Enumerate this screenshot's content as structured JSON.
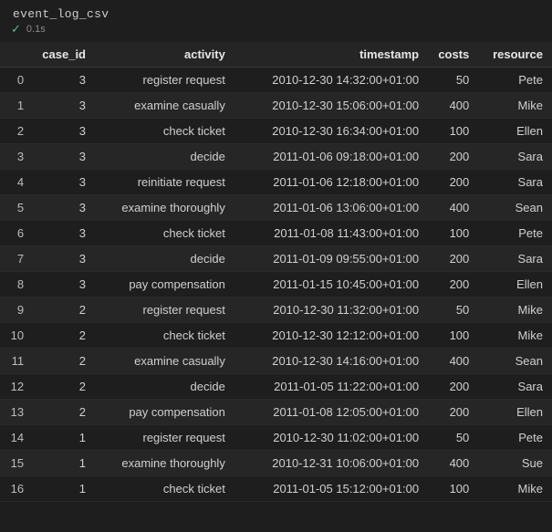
{
  "header": {
    "title": "event_log_csv",
    "status_time": "0.1s"
  },
  "table": {
    "columns": [
      "case_id",
      "activity",
      "timestamp",
      "costs",
      "resource"
    ],
    "rows": [
      {
        "idx": 0,
        "case_id": 3,
        "activity": "register request",
        "timestamp": "2010-12-30 14:32:00+01:00",
        "costs": 50,
        "resource": "Pete"
      },
      {
        "idx": 1,
        "case_id": 3,
        "activity": "examine casually",
        "timestamp": "2010-12-30 15:06:00+01:00",
        "costs": 400,
        "resource": "Mike"
      },
      {
        "idx": 2,
        "case_id": 3,
        "activity": "check ticket",
        "timestamp": "2010-12-30 16:34:00+01:00",
        "costs": 100,
        "resource": "Ellen"
      },
      {
        "idx": 3,
        "case_id": 3,
        "activity": "decide",
        "timestamp": "2011-01-06 09:18:00+01:00",
        "costs": 200,
        "resource": "Sara"
      },
      {
        "idx": 4,
        "case_id": 3,
        "activity": "reinitiate request",
        "timestamp": "2011-01-06 12:18:00+01:00",
        "costs": 200,
        "resource": "Sara"
      },
      {
        "idx": 5,
        "case_id": 3,
        "activity": "examine thoroughly",
        "timestamp": "2011-01-06 13:06:00+01:00",
        "costs": 400,
        "resource": "Sean"
      },
      {
        "idx": 6,
        "case_id": 3,
        "activity": "check ticket",
        "timestamp": "2011-01-08 11:43:00+01:00",
        "costs": 100,
        "resource": "Pete"
      },
      {
        "idx": 7,
        "case_id": 3,
        "activity": "decide",
        "timestamp": "2011-01-09 09:55:00+01:00",
        "costs": 200,
        "resource": "Sara"
      },
      {
        "idx": 8,
        "case_id": 3,
        "activity": "pay compensation",
        "timestamp": "2011-01-15 10:45:00+01:00",
        "costs": 200,
        "resource": "Ellen"
      },
      {
        "idx": 9,
        "case_id": 2,
        "activity": "register request",
        "timestamp": "2010-12-30 11:32:00+01:00",
        "costs": 50,
        "resource": "Mike"
      },
      {
        "idx": 10,
        "case_id": 2,
        "activity": "check ticket",
        "timestamp": "2010-12-30 12:12:00+01:00",
        "costs": 100,
        "resource": "Mike"
      },
      {
        "idx": 11,
        "case_id": 2,
        "activity": "examine casually",
        "timestamp": "2010-12-30 14:16:00+01:00",
        "costs": 400,
        "resource": "Sean"
      },
      {
        "idx": 12,
        "case_id": 2,
        "activity": "decide",
        "timestamp": "2011-01-05 11:22:00+01:00",
        "costs": 200,
        "resource": "Sara"
      },
      {
        "idx": 13,
        "case_id": 2,
        "activity": "pay compensation",
        "timestamp": "2011-01-08 12:05:00+01:00",
        "costs": 200,
        "resource": "Ellen"
      },
      {
        "idx": 14,
        "case_id": 1,
        "activity": "register request",
        "timestamp": "2010-12-30 11:02:00+01:00",
        "costs": 50,
        "resource": "Pete"
      },
      {
        "idx": 15,
        "case_id": 1,
        "activity": "examine thoroughly",
        "timestamp": "2010-12-31 10:06:00+01:00",
        "costs": 400,
        "resource": "Sue"
      },
      {
        "idx": 16,
        "case_id": 1,
        "activity": "check ticket",
        "timestamp": "2011-01-05 15:12:00+01:00",
        "costs": 100,
        "resource": "Mike"
      }
    ]
  },
  "colors": {
    "background": "#1e1e1e",
    "row_alt": "#262626",
    "header_bg": "#252526",
    "text": "#d0d0d0",
    "muted": "#888888",
    "accent_check": "#4ec77b"
  }
}
